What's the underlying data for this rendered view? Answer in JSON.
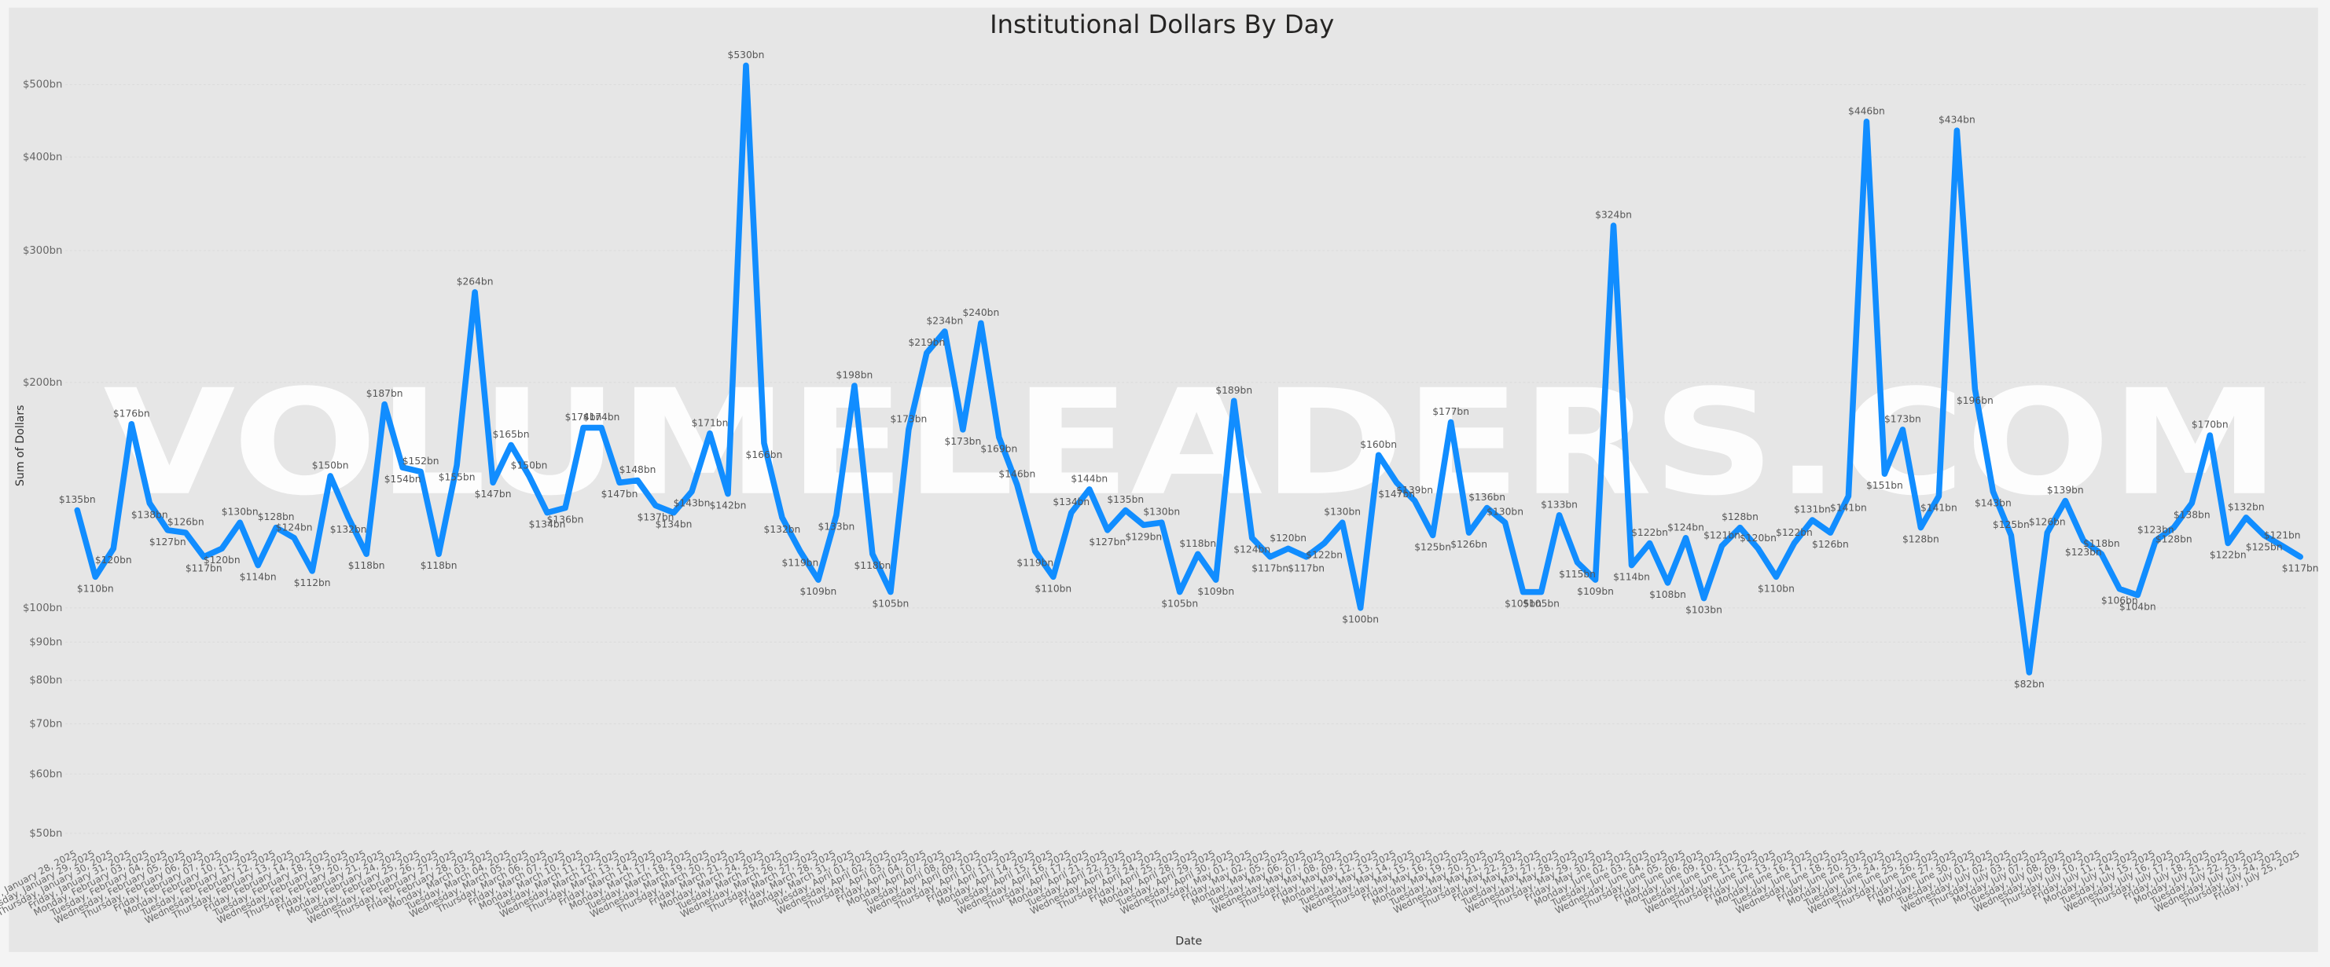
{
  "chart_data": {
    "type": "line",
    "title": "Institutional Dollars By Day",
    "x_label": "Date",
    "y_label": "Sum of Dollars",
    "watermark": "VOLUMELEADERS.COM",
    "log_scale": true,
    "color": "#118dff",
    "ylim": [
      48,
      565
    ],
    "yticks": [
      {
        "value": 50,
        "label": "$50bn"
      },
      {
        "value": 60,
        "label": "$60bn"
      },
      {
        "value": 70,
        "label": "$70bn"
      },
      {
        "value": 80,
        "label": "$80bn"
      },
      {
        "value": 90,
        "label": "$90bn"
      },
      {
        "value": 100,
        "label": "$100bn"
      },
      {
        "value": 200,
        "label": "$200bn"
      },
      {
        "value": 300,
        "label": "$300bn"
      },
      {
        "value": 400,
        "label": "$400bn"
      },
      {
        "value": 500,
        "label": "$500bn"
      }
    ],
    "grid": true,
    "categories": [
      "Tuesday, January 28, 2025",
      "Wednesday, January 29, 2025",
      "Thursday, January 30, 2025",
      "Friday, January 31, 2025",
      "Monday, February 03, 2025",
      "Tuesday, February 04, 2025",
      "Wednesday, February 05, 2025",
      "Thursday, February 06, 2025",
      "Friday, February 07, 2025",
      "Monday, February 10, 2025",
      "Tuesday, February 11, 2025",
      "Wednesday, February 12, 2025",
      "Thursday, February 13, 2025",
      "Friday, February 14, 2025",
      "Tuesday, February 18, 2025",
      "Wednesday, February 19, 2025",
      "Thursday, February 20, 2025",
      "Friday, February 21, 2025",
      "Monday, February 24, 2025",
      "Tuesday, February 25, 2025",
      "Wednesday, February 26, 2025",
      "Thursday, February 27, 2025",
      "Friday, February 28, 2025",
      "Monday, March 03, 2025",
      "Tuesday, March 04, 2025",
      "Wednesday, March 05, 2025",
      "Thursday, March 06, 2025",
      "Friday, March 07, 2025",
      "Monday, March 10, 2025",
      "Tuesday, March 11, 2025",
      "Wednesday, March 12, 2025",
      "Thursday, March 13, 2025",
      "Friday, March 14, 2025",
      "Monday, March 17, 2025",
      "Tuesday, March 18, 2025",
      "Wednesday, March 19, 2025",
      "Thursday, March 20, 2025",
      "Friday, March 21, 2025",
      "Monday, March 24, 2025",
      "Tuesday, March 25, 2025",
      "Wednesday, March 26, 2025",
      "Thursday, March 27, 2025",
      "Friday, March 28, 2025",
      "Monday, March 31, 2025",
      "Tuesday, April 01, 2025",
      "Wednesday, April 02, 2025",
      "Thursday, April 03, 2025",
      "Friday, April 04, 2025",
      "Monday, April 07, 2025",
      "Tuesday, April 08, 2025",
      "Wednesday, April 09, 2025",
      "Thursday, April 10, 2025",
      "Friday, April 11, 2025",
      "Monday, April 14, 2025",
      "Tuesday, April 15, 2025",
      "Wednesday, April 16, 2025",
      "Thursday, April 17, 2025",
      "Monday, April 21, 2025",
      "Tuesday, April 22, 2025",
      "Wednesday, April 23, 2025",
      "Thursday, April 24, 2025",
      "Friday, April 25, 2025",
      "Monday, April 28, 2025",
      "Tuesday, April 29, 2025",
      "Wednesday, April 30, 2025",
      "Thursday, May 01, 2025",
      "Friday, May 02, 2025",
      "Monday, May 05, 2025",
      "Tuesday, May 06, 2025",
      "Wednesday, May 07, 2025",
      "Thursday, May 08, 2025",
      "Friday, May 09, 2025",
      "Monday, May 12, 2025",
      "Tuesday, May 13, 2025",
      "Wednesday, May 14, 2025",
      "Thursday, May 15, 2025",
      "Friday, May 16, 2025",
      "Monday, May 19, 2025",
      "Tuesday, May 20, 2025",
      "Wednesday, May 21, 2025",
      "Thursday, May 22, 2025",
      "Friday, May 23, 2025",
      "Tuesday, May 27, 2025",
      "Wednesday, May 28, 2025",
      "Thursday, May 29, 2025",
      "Friday, May 30, 2025",
      "Monday, June 02, 2025",
      "Tuesday, June 03, 2025",
      "Wednesday, June 04, 2025",
      "Thursday, June 05, 2025",
      "Friday, June 06, 2025",
      "Monday, June 09, 2025",
      "Tuesday, June 10, 2025",
      "Wednesday, June 11, 2025",
      "Thursday, June 12, 2025",
      "Friday, June 13, 2025",
      "Monday, June 16, 2025",
      "Tuesday, June 17, 2025",
      "Wednesday, June 18, 2025",
      "Friday, June 20, 2025",
      "Monday, June 23, 2025",
      "Tuesday, June 24, 2025",
      "Wednesday, June 25, 2025",
      "Thursday, June 26, 2025",
      "Friday, June 27, 2025",
      "Monday, June 30, 2025",
      "Tuesday, July 01, 2025",
      "Wednesday, July 02, 2025",
      "Thursday, July 03, 2025",
      "Monday, July 07, 2025",
      "Tuesday, July 08, 2025",
      "Wednesday, July 09, 2025",
      "Thursday, July 10, 2025",
      "Friday, July 11, 2025",
      "Monday, July 14, 2025",
      "Tuesday, July 15, 2025",
      "Wednesday, July 16, 2025",
      "Thursday, July 17, 2025",
      "Friday, July 18, 2025",
      "Monday, July 21, 2025",
      "Tuesday, July 22, 2025",
      "Wednesday, July 23, 2025",
      "Thursday, July 24, 2025",
      "Friday, July 25, 2025"
    ],
    "values": [
      135,
      110,
      120,
      176,
      138,
      127,
      126,
      117,
      120,
      130,
      114,
      128,
      124,
      112,
      150,
      132,
      118,
      187,
      154,
      152,
      118,
      155,
      264,
      147,
      165,
      150,
      134,
      136,
      174,
      174,
      147,
      148,
      137,
      134,
      143,
      171,
      142,
      530,
      166,
      132,
      119,
      109,
      133,
      198,
      118,
      105,
      173,
      219,
      234,
      173,
      240,
      169,
      146,
      119,
      110,
      134,
      144,
      127,
      135,
      129,
      130,
      105,
      118,
      109,
      189,
      124,
      117,
      120,
      117,
      122,
      130,
      100,
      160,
      147,
      139,
      125,
      177,
      126,
      136,
      130,
      105,
      105,
      133,
      115,
      109,
      324,
      114,
      122,
      108,
      124,
      103,
      121,
      128,
      120,
      110,
      122,
      131,
      126,
      141,
      446,
      151,
      173,
      128,
      141,
      434,
      196,
      143,
      125,
      82,
      126,
      139,
      123,
      118,
      106,
      104,
      123,
      128,
      138,
      170,
      122,
      132,
      125,
      121,
      117
    ],
    "value_labels": [
      "$135bn",
      "$110bn",
      "$120bn",
      "$176bn",
      "$138bn",
      "$127bn",
      "$126bn",
      "$117bn",
      "$120bn",
      "$130bn",
      "$114bn",
      "$128bn",
      "$124bn",
      "$112bn",
      "$150bn",
      "$132bn",
      "$118bn",
      "$187bn",
      "$154bn",
      "$152bn",
      "$118bn",
      "$155bn",
      "$264bn",
      "$147bn",
      "$165bn",
      "$150bn",
      "$134bn",
      "$136bn",
      "$174bn",
      "$174bn",
      "$147bn",
      "$148bn",
      "$137bn",
      "$134bn",
      "$143bn",
      "$171bn",
      "$142bn",
      "$530bn",
      "$166bn",
      "$132bn",
      "$119bn",
      "$109bn",
      "$133bn",
      "$198bn",
      "$118bn",
      "$105bn",
      "$173bn",
      "$219bn",
      "$234bn",
      "$173bn",
      "$240bn",
      "$169bn",
      "$146bn",
      "$119bn",
      "$110bn",
      "$134bn",
      "$144bn",
      "$127bn",
      "$135bn",
      "$129bn",
      "$130bn",
      "$105bn",
      "$118bn",
      "$109bn",
      "$189bn",
      "$124bn",
      "$117bn",
      "$120bn",
      "$117bn",
      "$122bn",
      "$130bn",
      "$100bn",
      "$160bn",
      "$147bn",
      "$139bn",
      "$125bn",
      "$177bn",
      "$126bn",
      "$136bn",
      "$130bn",
      "$105bn",
      "$105bn",
      "$133bn",
      "$115bn",
      "$109bn",
      "$324bn",
      "$114bn",
      "$122bn",
      "$108bn",
      "$124bn",
      "$103bn",
      "$121bn",
      "$128bn",
      "$120bn",
      "$110bn",
      "$122bn",
      "$131bn",
      "$126bn",
      "$141bn",
      "$446bn",
      "$151bn",
      "$173bn",
      "$128bn",
      "$141bn",
      "$434bn",
      "$196bn",
      "$143bn",
      "$125bn",
      "$82bn",
      "$126bn",
      "$139bn",
      "$123bn",
      "$118bn",
      "$106bn",
      "$104bn",
      "$123bn",
      "$128bn",
      "$138bn",
      "$170bn",
      "$122bn",
      "$132bn",
      "$125bn",
      "$121bn",
      "$117bn"
    ]
  }
}
